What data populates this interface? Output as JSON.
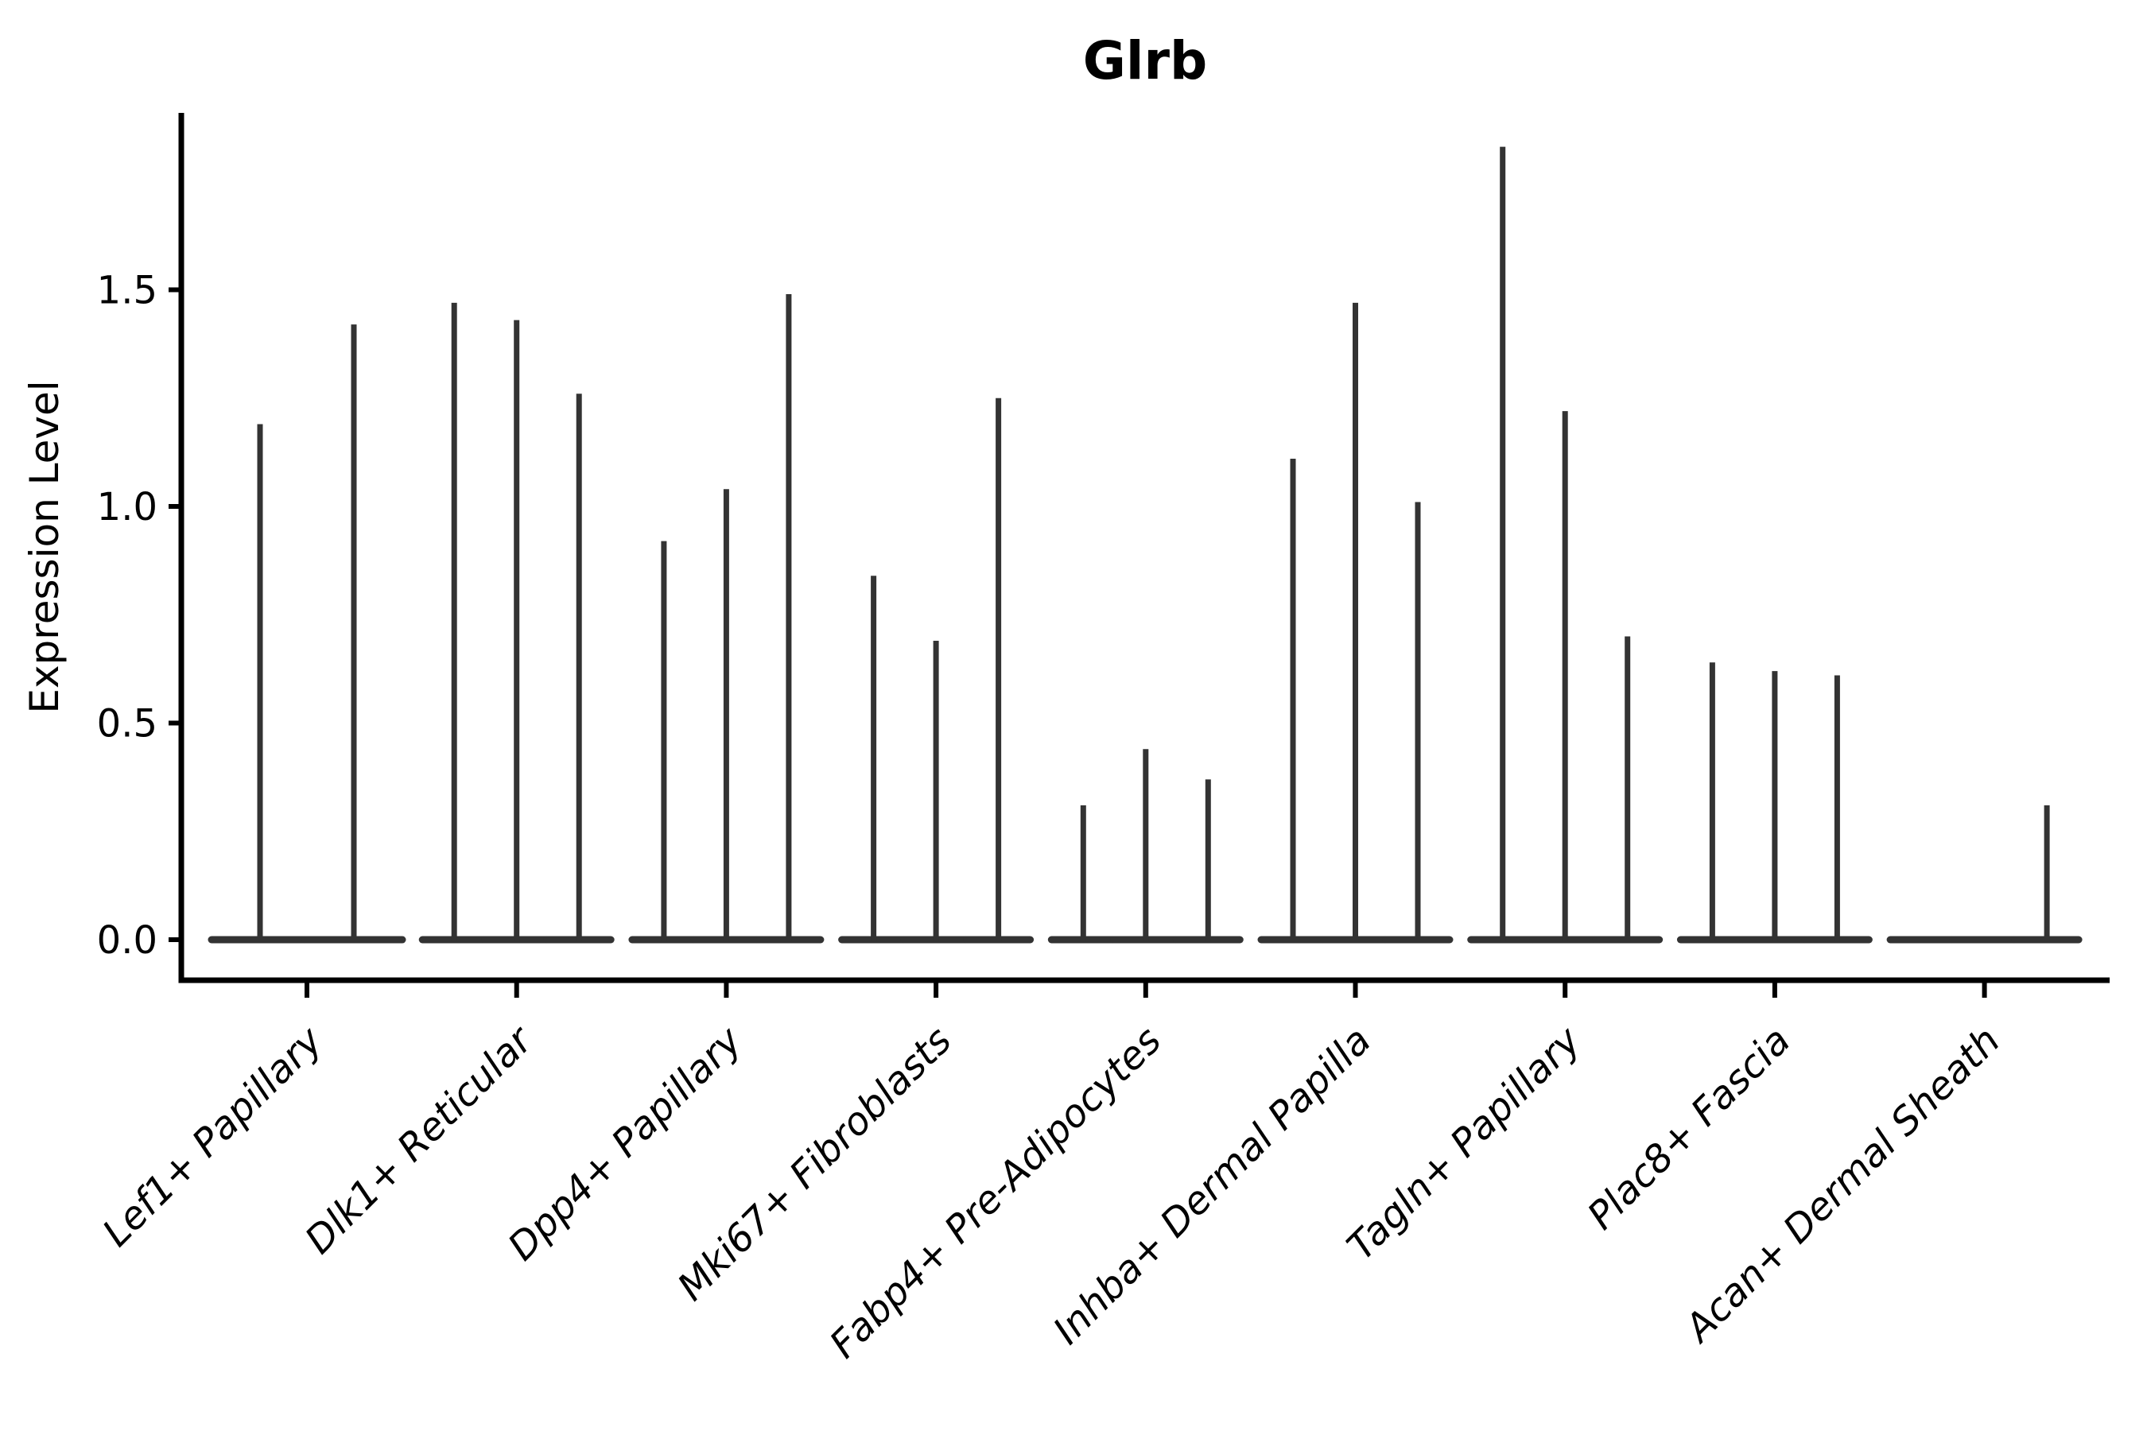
{
  "title": "Glrb",
  "axes": {
    "ylabel": "Expression Level",
    "ytick_labels": [
      "0.0",
      "0.5",
      "1.0",
      "1.5"
    ],
    "ytick_values": [
      0.0,
      0.5,
      1.0,
      1.5
    ]
  },
  "colors": {
    "violin": "#333333",
    "axis": "#000000",
    "text": "#000000",
    "background": "#ffffff"
  },
  "chart_data": {
    "type": "violin",
    "title": "Glrb",
    "xlabel": "",
    "ylabel": "Expression Level",
    "ylim": [
      -0.09,
      1.92
    ],
    "yticks": [
      0.0,
      0.5,
      1.0,
      1.5
    ],
    "grid": false,
    "legend": "none",
    "style": "narrow spike violins (near-zero density bulge at 0, thin tail up to max expression); 2-3 violins per category",
    "categories": [
      {
        "label": "Lef1+ Papillary",
        "violin_heights": [
          1.19,
          1.42
        ]
      },
      {
        "label": "Dlk1+ Reticular",
        "violin_heights": [
          1.47,
          1.43,
          1.26
        ]
      },
      {
        "label": "Dpp4+ Papillary",
        "violin_heights": [
          0.92,
          1.04,
          1.49
        ]
      },
      {
        "label": "Mki67+ Fibroblasts",
        "violin_heights": [
          0.84,
          0.69,
          1.25
        ]
      },
      {
        "label": "Fabp4+ Pre-Adipocytes",
        "violin_heights": [
          0.31,
          0.44,
          0.37
        ]
      },
      {
        "label": "Inhba+ Dermal Papilla",
        "violin_heights": [
          1.11,
          1.47,
          1.01
        ]
      },
      {
        "label": "Tagln+ Papillary",
        "violin_heights": [
          1.83,
          1.22,
          0.7
        ]
      },
      {
        "label": "Plac8+ Fascia",
        "violin_heights": [
          0.64,
          0.62,
          0.61
        ]
      },
      {
        "label": "Acan+ Dermal Sheath",
        "violin_heights": [
          0.0,
          0.0,
          0.31
        ]
      }
    ]
  }
}
